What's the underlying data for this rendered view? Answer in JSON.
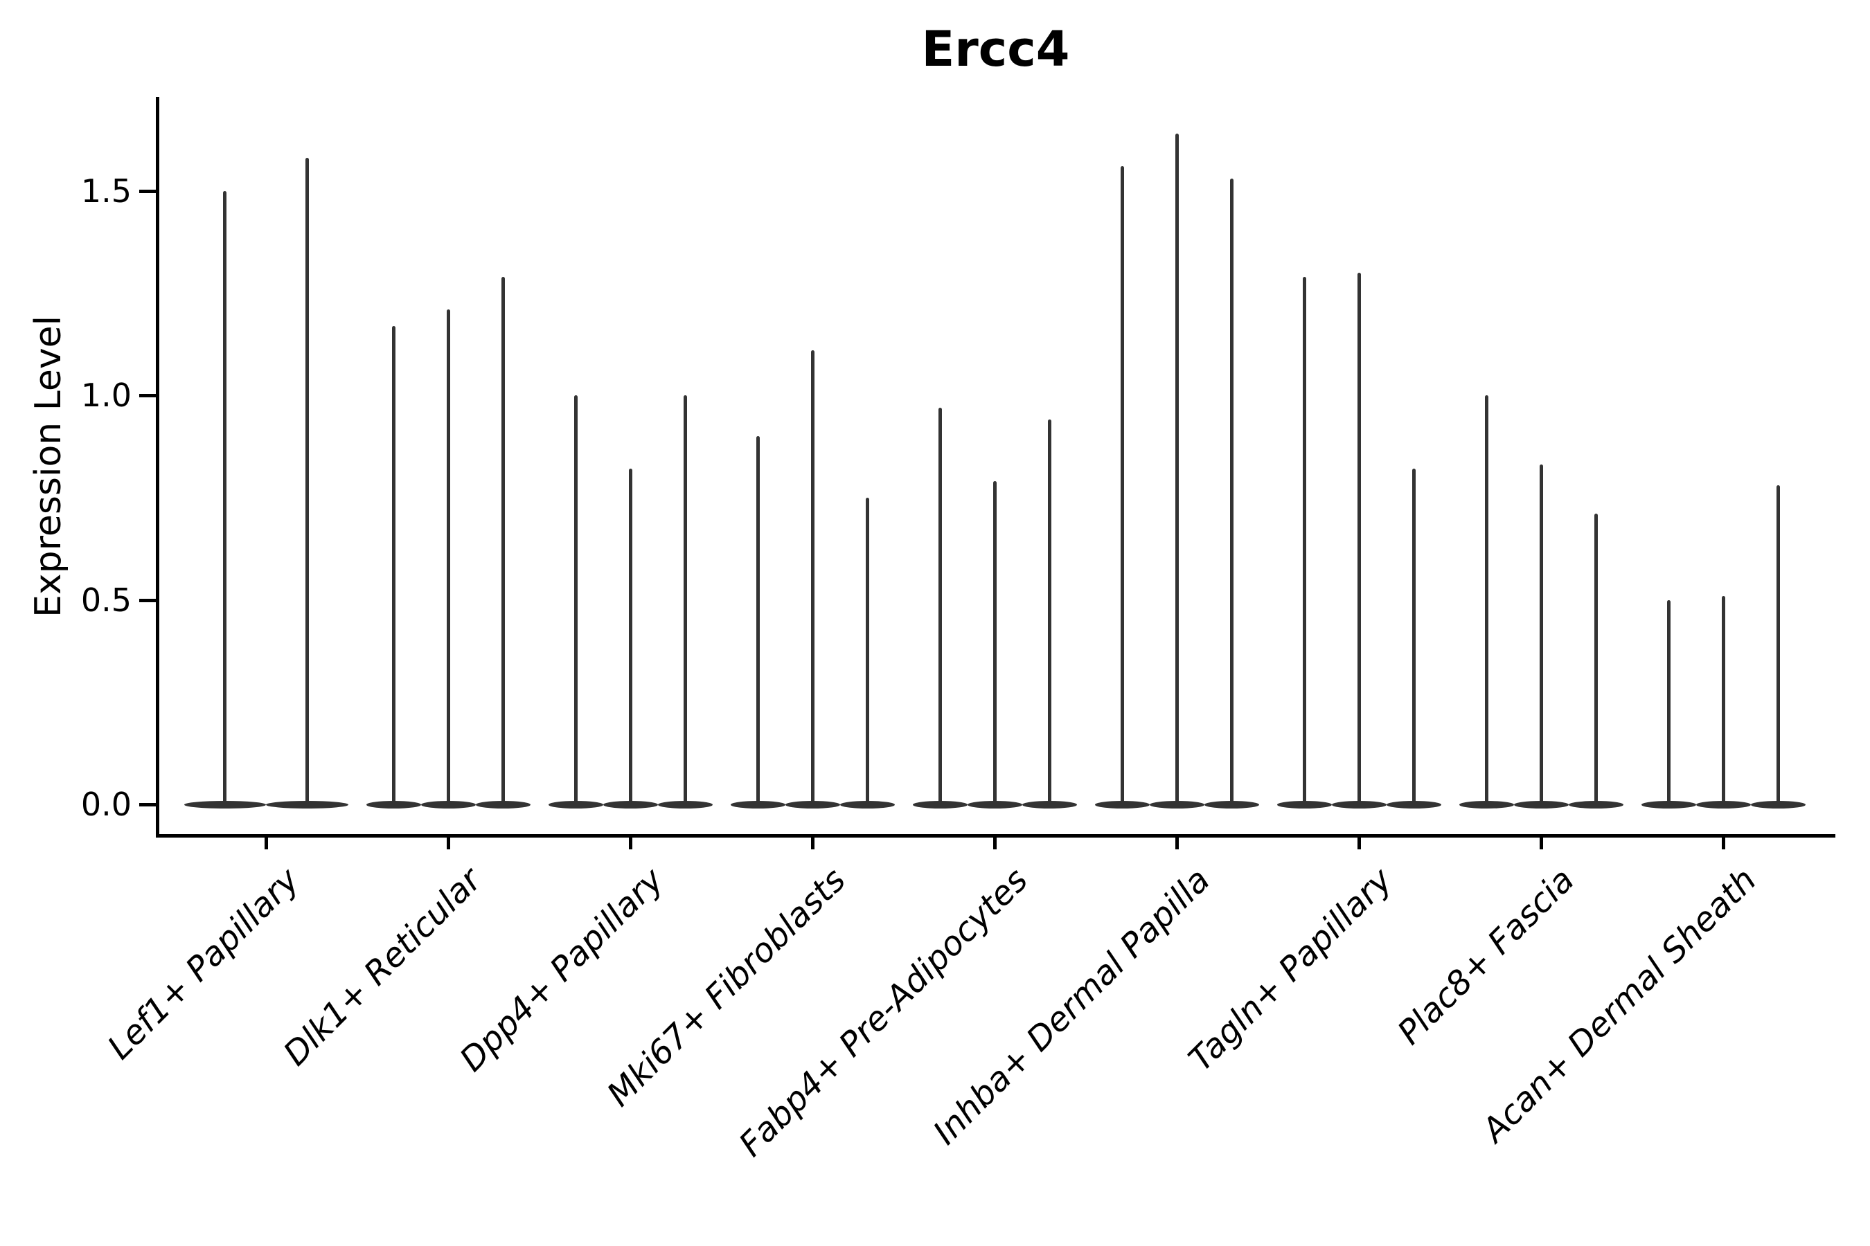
{
  "chart_data": {
    "type": "violin",
    "title": "Ercc4",
    "xlabel": "",
    "ylabel": "Expression Level",
    "yticks": [
      "0.0",
      "0.5",
      "1.0",
      "1.5"
    ],
    "ytick_values": [
      0.0,
      0.5,
      1.0,
      1.5
    ],
    "ylim": [
      0.0,
      1.73
    ],
    "grid": false,
    "legend": false,
    "x_label_rotation_deg": 45,
    "x_label_style": "italic",
    "violin_color": "#333333",
    "axis_color": "#000000",
    "description": "Each violin is a near-zero-width spike: dense flat mass at expression 0 with a thin line up to the maximum expression value.",
    "categories": [
      "Lef1+ Papillary",
      "Dlk1+ Reticular",
      "Dpp4+ Papillary",
      "Mki67+ Fibroblasts",
      "Fabp4+ Pre-Adipocytes",
      "Inhba+ Dermal Papilla",
      "Tagln+ Papillary",
      "Plac8+ Fascia",
      "Acan+ Dermal Sheath"
    ],
    "series": [
      {
        "name": "Lef1+ Papillary",
        "violin_max_values": [
          1.5,
          1.58
        ]
      },
      {
        "name": "Dlk1+ Reticular",
        "violin_max_values": [
          1.17,
          1.21,
          1.29
        ]
      },
      {
        "name": "Dpp4+ Papillary",
        "violin_max_values": [
          1.0,
          0.82,
          1.0
        ]
      },
      {
        "name": "Mki67+ Fibroblasts",
        "violin_max_values": [
          0.9,
          1.11,
          0.75
        ]
      },
      {
        "name": "Fabp4+ Pre-Adipocytes",
        "violin_max_values": [
          0.97,
          0.79,
          0.94
        ]
      },
      {
        "name": "Inhba+ Dermal Papilla",
        "violin_max_values": [
          1.56,
          1.64,
          1.53
        ]
      },
      {
        "name": "Tagln+ Papillary",
        "violin_max_values": [
          1.29,
          1.3,
          0.82
        ]
      },
      {
        "name": "Plac8+ Fascia",
        "violin_max_values": [
          1.0,
          0.83,
          0.71
        ]
      },
      {
        "name": "Acan+ Dermal Sheath",
        "violin_max_values": [
          0.5,
          0.51,
          0.78
        ]
      }
    ]
  }
}
